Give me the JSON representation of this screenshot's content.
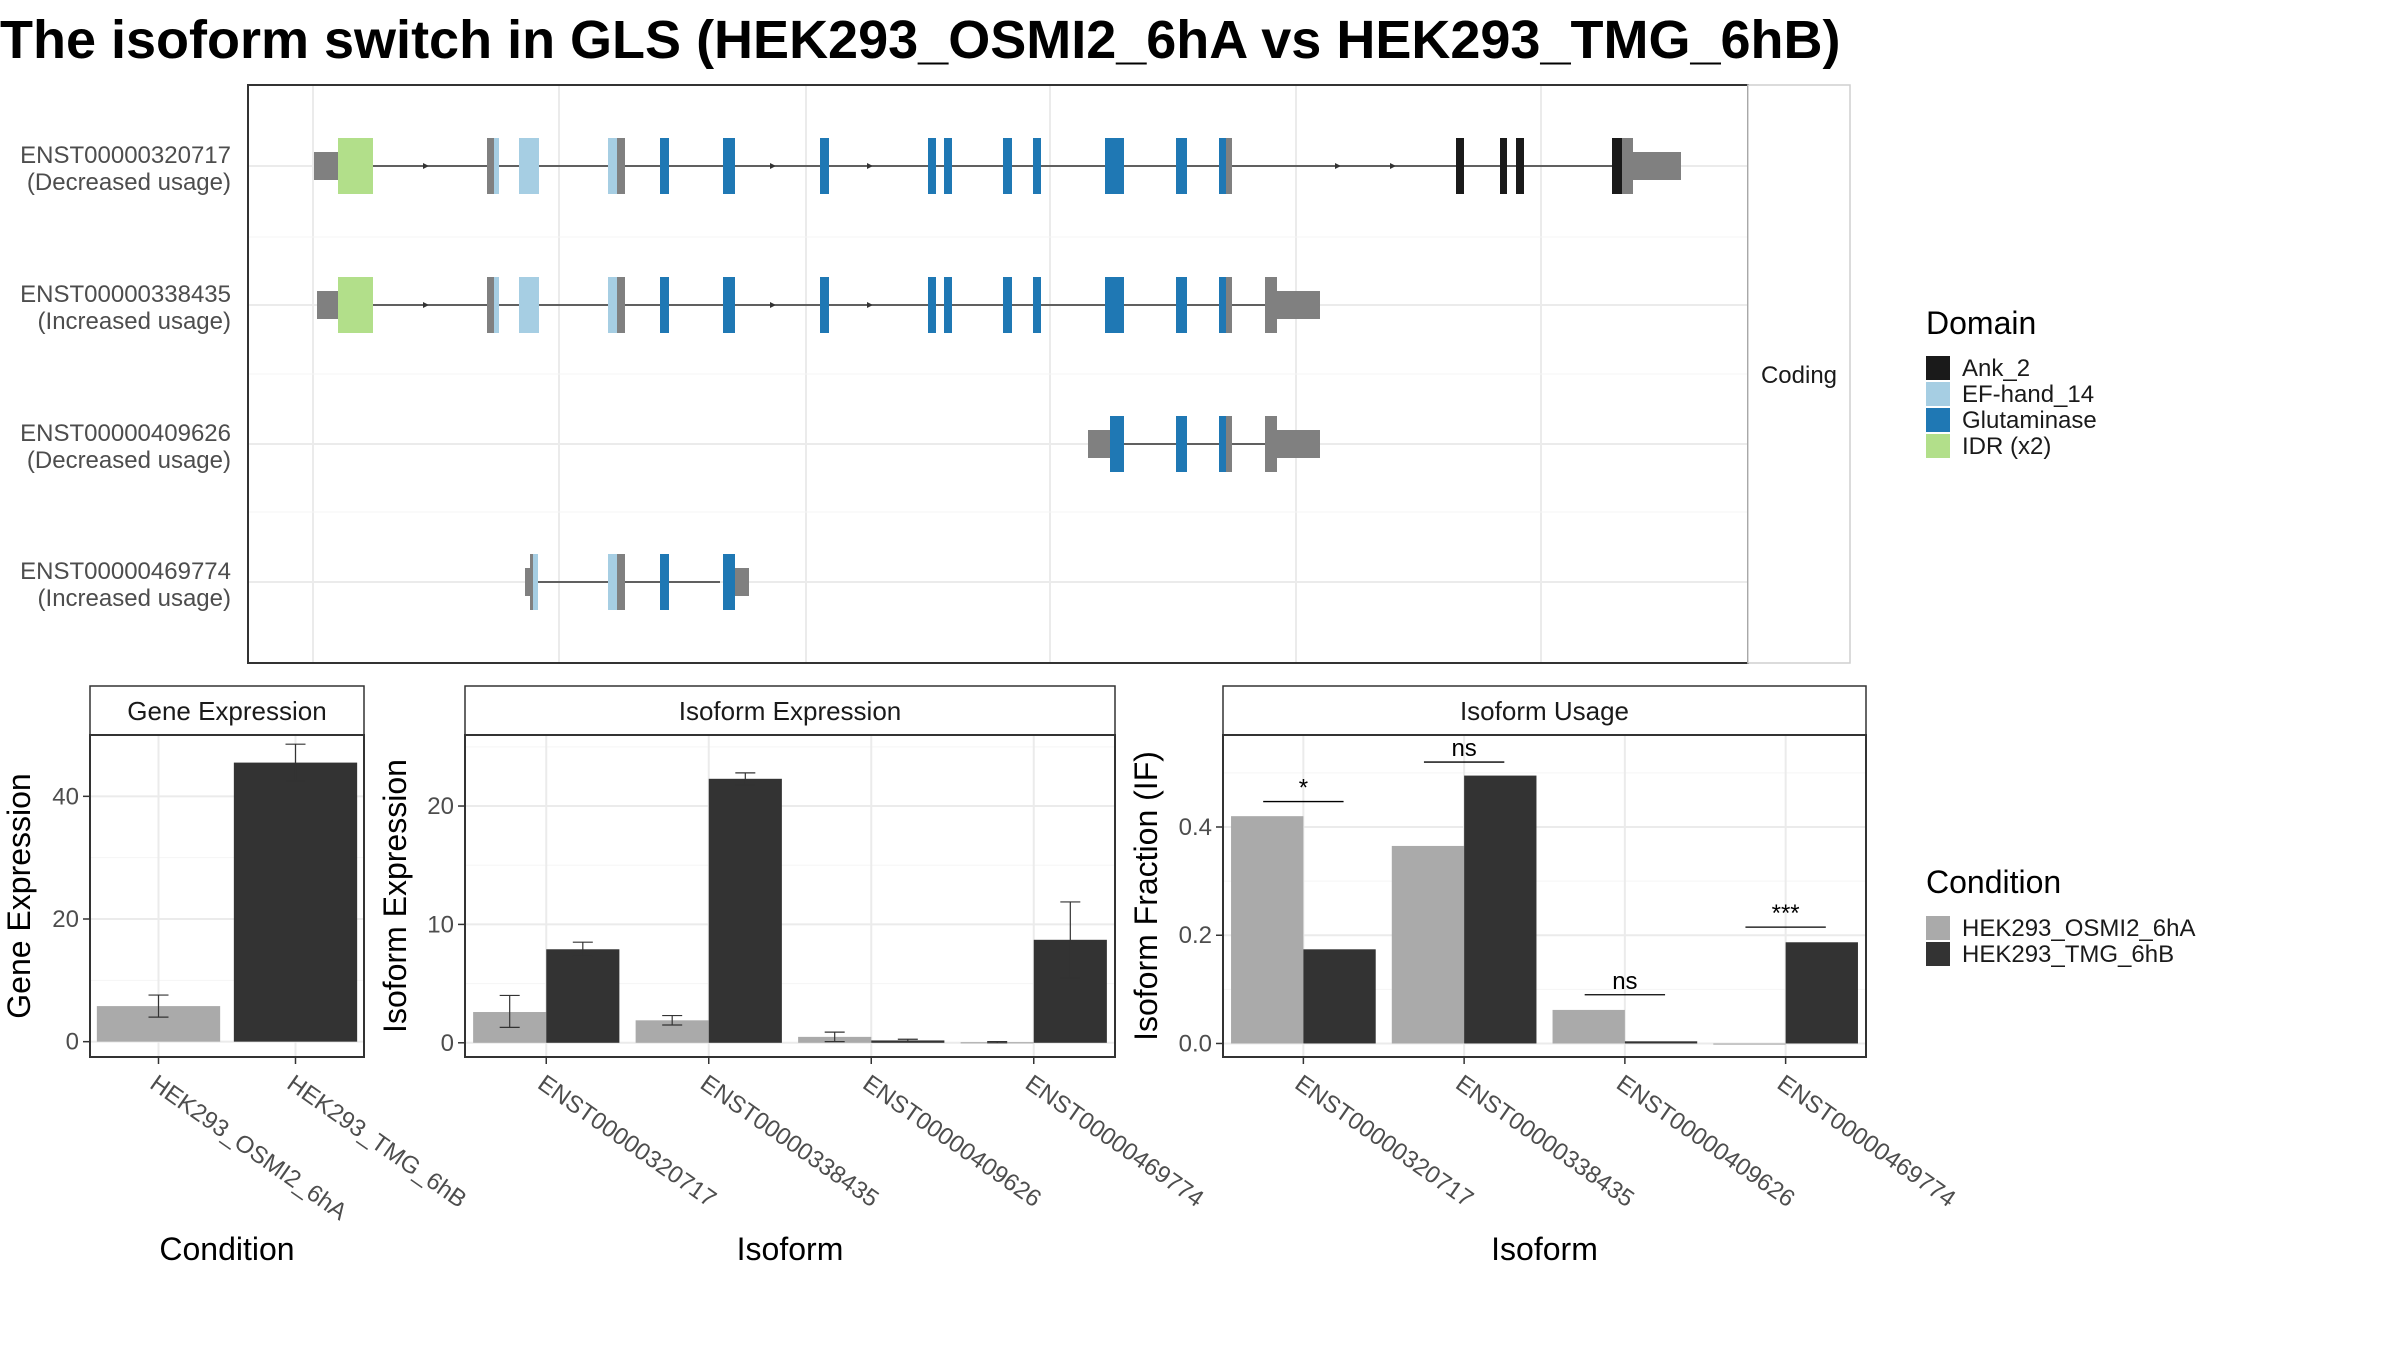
{
  "title": "The isoform switch in GLS (HEK293_OSMI2_6hA vs HEK293_TMG_6hB)",
  "colors": {
    "ank_2": "#1a1a1a",
    "ef_hand_14": "#a6cee3",
    "glutaminase": "#1f78b4",
    "idr": "#b2df8a",
    "utr": "#808080",
    "cond_a": "#aaaaaa",
    "cond_b": "#333333"
  },
  "structure_panel": {
    "strip_label": "Coding",
    "transcripts": [
      {
        "id": "ENST00000320717",
        "usage": "(Decreased usage)"
      },
      {
        "id": "ENST00000338435",
        "usage": "(Increased usage)"
      },
      {
        "id": "ENST00000409626",
        "usage": "(Decreased usage)"
      },
      {
        "id": "ENST00000469774",
        "usage": "(Increased usage)"
      }
    ]
  },
  "legend_domain": {
    "title": "Domain",
    "items": [
      "Ank_2",
      "EF-hand_14",
      "Glutaminase",
      "IDR (x2)"
    ]
  },
  "legend_condition": {
    "title": "Condition",
    "items": [
      "HEK293_OSMI2_6hA",
      "HEK293_TMG_6hB"
    ]
  },
  "chart_data": [
    {
      "type": "bar",
      "panel": "Gene Expression",
      "xlabel": "Condition",
      "ylabel": "Gene Expression",
      "categories": [
        "HEK293_OSMI2_6hA",
        "HEK293_TMG_6hB"
      ],
      "values": [
        5.8,
        45.5
      ],
      "error_low": [
        4.0,
        42.5
      ],
      "error_high": [
        7.6,
        48.5
      ],
      "ylim": [
        -2.5,
        50
      ],
      "yticks": [
        0,
        20,
        40
      ]
    },
    {
      "type": "bar",
      "panel": "Isoform Expression",
      "xlabel": "Isoform",
      "ylabel": "Isoform Expression",
      "categories": [
        "ENST00000320717",
        "ENST00000338435",
        "ENST00000409626",
        "ENST00000469774"
      ],
      "series": [
        {
          "name": "HEK293_OSMI2_6hA",
          "values": [
            2.6,
            1.9,
            0.5,
            0.05
          ],
          "error_low": [
            1.3,
            1.5,
            0.1,
            0.0
          ],
          "error_high": [
            4.0,
            2.3,
            0.9,
            0.1
          ]
        },
        {
          "name": "HEK293_TMG_6hB",
          "values": [
            7.9,
            22.3,
            0.2,
            8.7
          ],
          "error_low": [
            7.3,
            21.8,
            0.1,
            5.5
          ],
          "error_high": [
            8.5,
            22.8,
            0.3,
            11.9
          ]
        }
      ],
      "ylim": [
        -1.2,
        26
      ],
      "yticks": [
        0,
        10,
        20
      ]
    },
    {
      "type": "bar",
      "panel": "Isoform Usage",
      "xlabel": "Isoform",
      "ylabel": "Isoform Fraction (IF)",
      "categories": [
        "ENST00000320717",
        "ENST00000338435",
        "ENST00000409626",
        "ENST00000469774"
      ],
      "series": [
        {
          "name": "HEK293_OSMI2_6hA",
          "values": [
            0.42,
            0.365,
            0.062,
            0.0
          ]
        },
        {
          "name": "HEK293_TMG_6hB",
          "values": [
            0.174,
            0.495,
            0.004,
            0.187
          ]
        }
      ],
      "significance": [
        "*",
        "ns",
        "ns",
        "***"
      ],
      "sig_y": [
        0.447,
        0.52,
        0.09,
        0.215
      ],
      "ylim": [
        -0.025,
        0.57
      ],
      "yticks": [
        "0.0",
        "0.2",
        "0.4"
      ]
    }
  ]
}
